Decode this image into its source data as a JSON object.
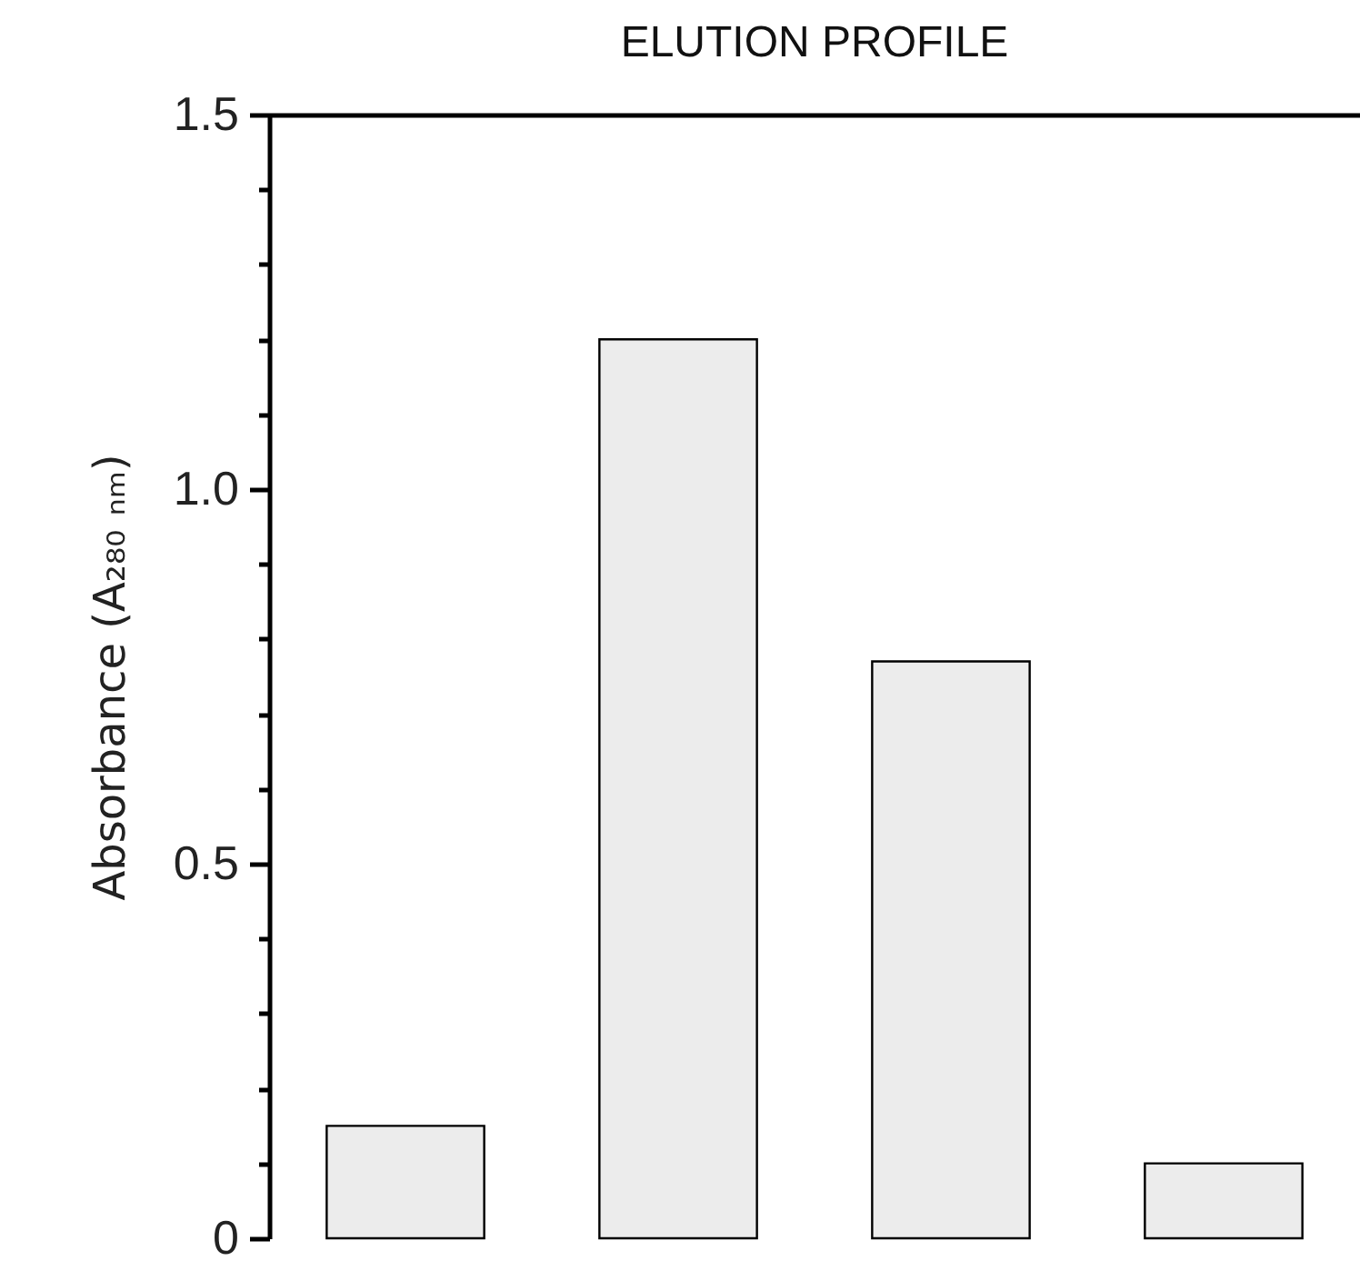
{
  "chart_data": {
    "type": "bar",
    "title": "ELUTION PROFILE",
    "ylabel": "Absorbance (A₂₈₀ ₙₘ)",
    "categories": [
      null,
      null,
      null,
      null
    ],
    "values": [
      0.15,
      1.2,
      0.77,
      0.1
    ],
    "color": "#ececec",
    "ylim": [
      0,
      1.5
    ],
    "yticks": [
      0,
      {
        "value": 0.1,
        "label": null
      },
      {
        "value": 0.2,
        "label": null
      },
      {
        "value": 0.3,
        "label": null
      },
      {
        "value": 0.4,
        "label": null
      },
      "0.5",
      {
        "value": 0.6,
        "label": null
      },
      {
        "value": 0.7,
        "label": null
      },
      {
        "value": 0.8,
        "label": null
      },
      {
        "value": 0.9,
        "label": null
      },
      {
        "value": 1,
        "label": "1.0"
      },
      {
        "value": 1.1,
        "label": null
      },
      {
        "value": 1.2,
        "label": null
      },
      {
        "value": 1.3,
        "label": null
      },
      {
        "value": 1.4,
        "label": null
      },
      1.5
    ],
    "tick_labels": "y",
    "grid": false
  }
}
